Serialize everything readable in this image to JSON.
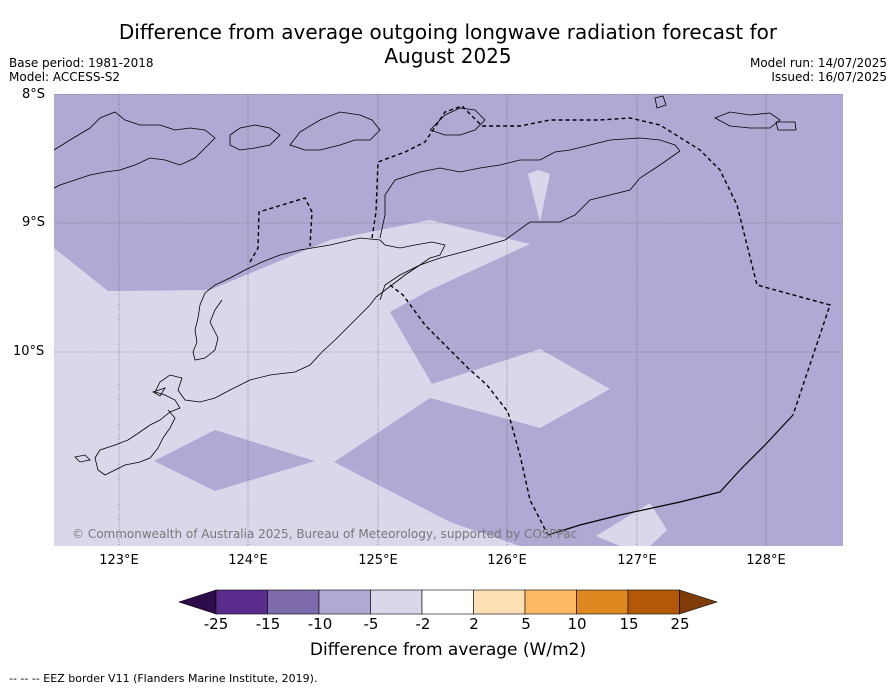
{
  "title_line1": "Difference from average outgoing longwave radiation forecast for",
  "title_line2": "August 2025",
  "base_period": "Base period: 1981-2018",
  "model": "Model: ACCESS-S2",
  "model_run": "Model run: 14/07/2025",
  "issued": "Issued: 16/07/2025",
  "lat_labels": [
    "8°S",
    "9°S",
    "10°S"
  ],
  "lon_labels": [
    "123°E",
    "124°E",
    "125°E",
    "126°E",
    "127°E",
    "128°E"
  ],
  "copyright": "© Commonwealth of Australia 2025, Bureau of Meteorology, supported by COSPPac",
  "colorbar": {
    "ticks": [
      "-25",
      "-15",
      "-10",
      "-5",
      "-2",
      "2",
      "5",
      "10",
      "15",
      "25"
    ],
    "colors": [
      "#2e0b4a",
      "#5a2d8c",
      "#7d6bab",
      "#b0a9d3",
      "#d9d8eb",
      "#ffffff",
      "#fde0b6",
      "#fdb963",
      "#e08820",
      "#b35806",
      "#7f3b08"
    ],
    "title": "Difference from average (W/m2)"
  },
  "footnote": "--  --  -- EEZ border V11 (Flanders Marine Institute, 2019).",
  "palette": {
    "bin_minus10_minus5": "#b0a9d3",
    "bin_minus5_minus2": "#d9d8eb",
    "coastline": "#000000",
    "gridline": "#444444"
  }
}
